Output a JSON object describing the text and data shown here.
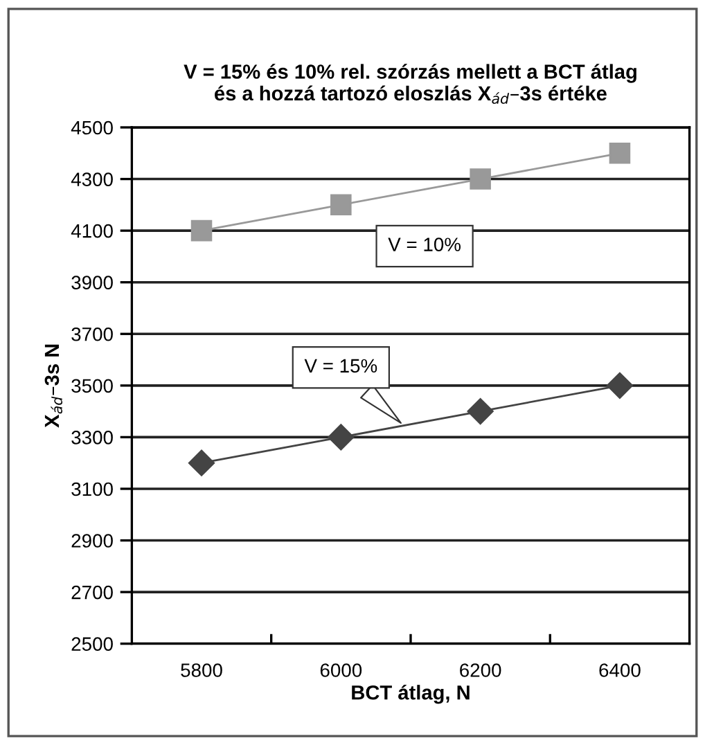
{
  "chart_data": {
    "type": "line",
    "title": "V = 15% és 10% rel. szórzás mellett a BCT átlag\nés a hozzá tartozó eloszlás X$_{ád}$–3s értéke",
    "xlabel": "BCT átlag, N",
    "ylabel": "X$_{ád}$–3s N",
    "categories": [
      "5800",
      "6000",
      "6200",
      "6400"
    ],
    "series": [
      {
        "name": "V = 10%",
        "color": "#999999",
        "marker": "square",
        "values": [
          4100,
          4200,
          4300,
          4400
        ]
      },
      {
        "name": "V = 15%",
        "color": "#444444",
        "marker": "diamond",
        "values": [
          3200,
          3300,
          3400,
          3500
        ]
      }
    ],
    "ylim": [
      2500,
      4500
    ],
    "yticks": [
      2500,
      2700,
      2900,
      3100,
      3300,
      3500,
      3700,
      3900,
      4100,
      4300,
      4500
    ],
    "grid": "y",
    "legend": false
  }
}
